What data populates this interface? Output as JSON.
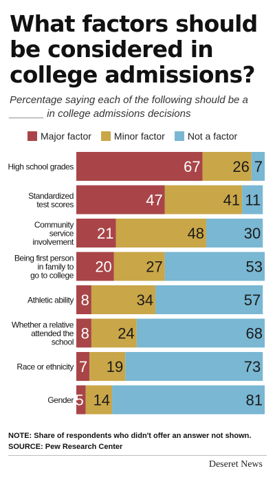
{
  "title": "What factors should be considered in college admissions?",
  "subtitle": "Percentage saying each of the following should be a ______ in college admissions decisions",
  "colors": {
    "major": "#a94548",
    "minor": "#c9a648",
    "not": "#79b7d3"
  },
  "legend": [
    {
      "key": "major",
      "label": "Major factor"
    },
    {
      "key": "minor",
      "label": "Minor factor"
    },
    {
      "key": "not",
      "label": "Not a factor"
    }
  ],
  "chart_data": {
    "type": "bar",
    "orientation": "horizontal",
    "stacked": true,
    "categories": [
      [
        "High school grades"
      ],
      [
        "Standardized",
        "test scores"
      ],
      [
        "Community",
        "service",
        "involvement"
      ],
      [
        "Being first person",
        "in family to",
        "go to college"
      ],
      [
        "Athletic ability"
      ],
      [
        "Whether a relative",
        "attended the",
        "school"
      ],
      [
        "Race or ethnicity"
      ],
      [
        "Gender"
      ]
    ],
    "series": [
      {
        "name": "Major factor",
        "key": "major",
        "values": [
          67,
          47,
          21,
          20,
          8,
          8,
          7,
          5
        ]
      },
      {
        "name": "Minor factor",
        "key": "minor",
        "values": [
          26,
          41,
          48,
          27,
          34,
          24,
          19,
          14
        ]
      },
      {
        "name": "Not a factor",
        "key": "not",
        "values": [
          7,
          11,
          30,
          53,
          57,
          68,
          73,
          81
        ]
      }
    ],
    "xlim": [
      0,
      100
    ],
    "legend_position": "top"
  },
  "notes": {
    "note": "NOTE: Share of respondents who didn't offer an answer not shown.",
    "source": "SOURCE: Pew Research Center"
  },
  "brand": "Deseret News"
}
